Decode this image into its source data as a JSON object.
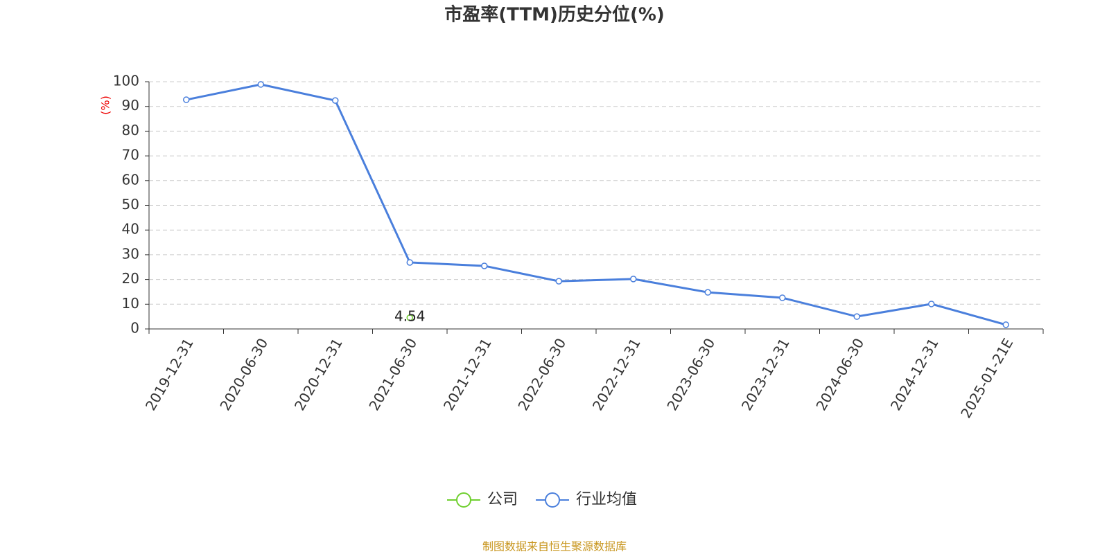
{
  "chart_data": {
    "type": "line",
    "title": "市盈率(TTM)历史分位(%)",
    "y_label": "(%)",
    "source": "制图数据来自恒生聚源数据库",
    "categories": [
      "2019-12-31",
      "2020-06-30",
      "2020-12-31",
      "2021-06-30",
      "2021-12-31",
      "2022-06-30",
      "2022-12-31",
      "2023-06-30",
      "2023-12-31",
      "2024-06-30",
      "2024-12-31",
      "2025-01-21E"
    ],
    "series": [
      {
        "name": "公司",
        "color": "#6fcf2f",
        "values": [
          null,
          null,
          null,
          4.54,
          null,
          null,
          null,
          null,
          null,
          null,
          null,
          null
        ],
        "show_labels": true
      },
      {
        "name": "行业均值",
        "color": "#4a7fdc",
        "values": [
          92.7,
          98.9,
          92.4,
          26.9,
          25.5,
          19.3,
          20.2,
          14.8,
          12.6,
          5.0,
          10.1,
          1.7
        ],
        "show_labels": false
      }
    ],
    "ylim": [
      0,
      100
    ],
    "yticks": [
      0,
      10,
      20,
      30,
      40,
      50,
      60,
      70,
      80,
      90,
      100
    ],
    "grid": true,
    "legend": "bottom"
  }
}
